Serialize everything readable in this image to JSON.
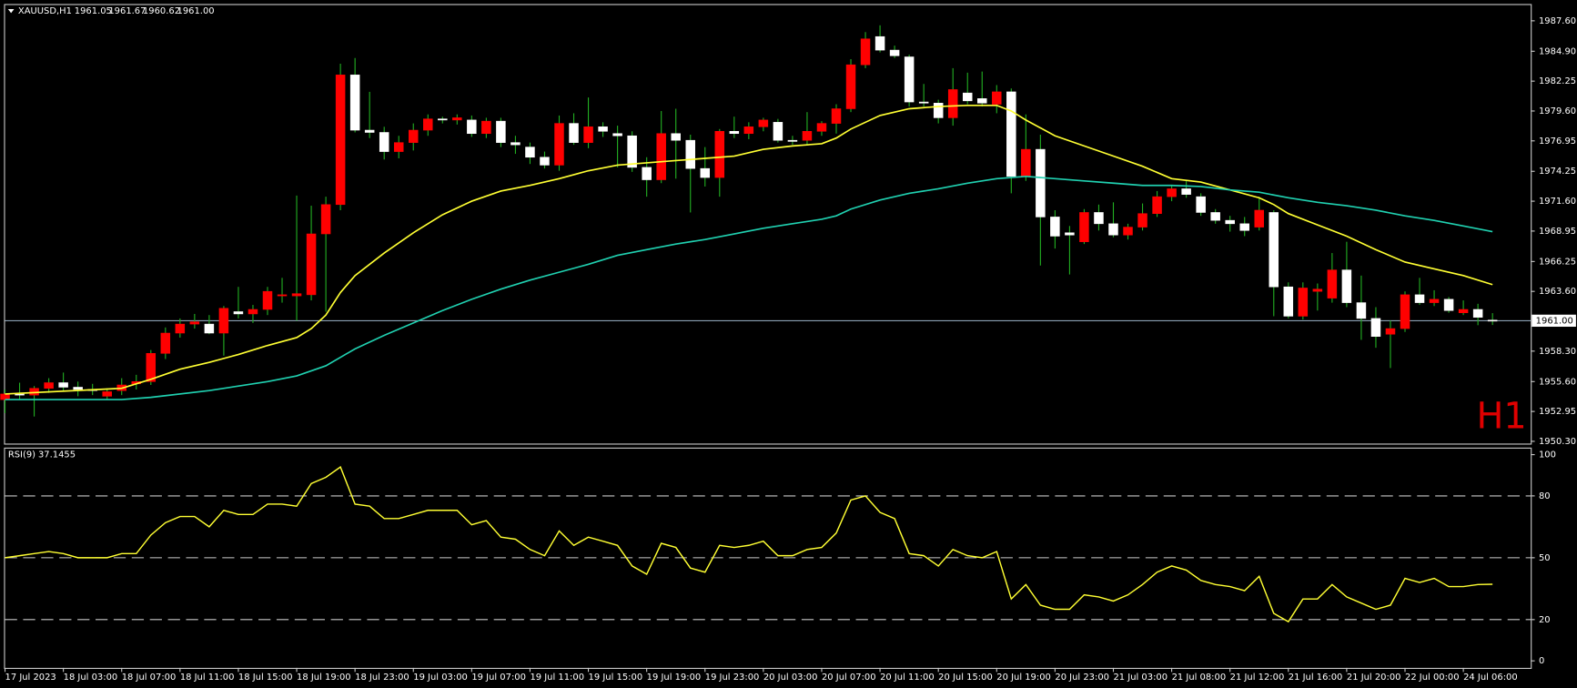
{
  "chart_data": {
    "type": "candlestick",
    "symbol": "XAUUSD,H1",
    "last_labels": [
      "1961.05",
      "1961.67",
      "1960.62",
      "1961.00"
    ],
    "timeframe_label": "H1",
    "up_color": "#ff0000",
    "down_color": "#ffffff",
    "wick_color": "#22b022",
    "price_line_color": "#8aa0b4",
    "ylim": [
      1950.1,
      1989.0
    ],
    "yticks": [
      {
        "value": 1987.6,
        "label": "1987.60"
      },
      {
        "value": 1984.9,
        "label": "1984.90"
      },
      1982.25,
      {
        "value": 1979.6,
        "label": "1979.60"
      },
      1976.95,
      1974.25,
      {
        "value": 1971.6,
        "label": "1971.60"
      },
      1968.95,
      1966.25,
      {
        "value": 1963.6,
        "label": "1963.60"
      },
      {
        "value": 1958.3,
        "label": "1958.30"
      },
      {
        "value": 1955.6,
        "label": "1955.60"
      },
      1952.95,
      {
        "value": 1950.3,
        "label": "1950.30"
      }
    ],
    "xticks": [
      {
        "value": 0,
        "label": "17 Jul 2023"
      },
      {
        "value": 4,
        "label": "18 Jul 03:00"
      },
      {
        "value": 8,
        "label": "18 Jul 07:00"
      },
      {
        "value": 12,
        "label": "18 Jul 11:00"
      },
      {
        "value": 16,
        "label": "18 Jul 15:00"
      },
      {
        "value": 20,
        "label": "18 Jul 19:00"
      },
      {
        "value": 24,
        "label": "18 Jul 23:00"
      },
      {
        "value": 28,
        "label": "19 Jul 03:00"
      },
      {
        "value": 32,
        "label": "19 Jul 07:00"
      },
      {
        "value": 36,
        "label": "19 Jul 11:00"
      },
      {
        "value": 40,
        "label": "19 Jul 15:00"
      },
      {
        "value": 44,
        "label": "19 Jul 19:00"
      },
      {
        "value": 48,
        "label": "19 Jul 23:00"
      },
      {
        "value": 52,
        "label": "20 Jul 03:00"
      },
      {
        "value": 56,
        "label": "20 Jul 07:00"
      },
      {
        "value": 60,
        "label": "20 Jul 11:00"
      },
      {
        "value": 64,
        "label": "20 Jul 15:00"
      },
      {
        "value": 68,
        "label": "20 Jul 19:00"
      },
      {
        "value": 72,
        "label": "20 Jul 23:00"
      },
      {
        "value": 76,
        "label": "21 Jul 03:00"
      },
      {
        "value": 80,
        "label": "21 Jul 08:00"
      },
      {
        "value": 84,
        "label": "21 Jul 12:00"
      },
      {
        "value": 88,
        "label": "21 Jul 16:00"
      },
      {
        "value": 92,
        "label": "21 Jul 20:00"
      },
      {
        "value": 96,
        "label": "22 Jul 00:00"
      },
      {
        "value": 100,
        "label": "24 Jul 06:00"
      }
    ],
    "candles": [
      [
        1954.0,
        1954.9,
        1952.8,
        1954.5
      ],
      [
        1954.5,
        1955.5,
        1954.0,
        1954.4
      ],
      [
        1954.4,
        1955.2,
        1952.5,
        1955.0
      ],
      [
        1955.0,
        1955.9,
        1954.6,
        1955.5
      ],
      [
        1955.5,
        1956.4,
        1954.8,
        1955.1
      ],
      [
        1955.1,
        1955.6,
        1954.3,
        1954.9
      ],
      [
        1954.9,
        1955.4,
        1954.4,
        1954.8
      ],
      [
        1954.3,
        1955.0,
        1954.0,
        1954.7
      ],
      [
        1954.8,
        1955.9,
        1954.4,
        1955.3
      ],
      [
        1955.4,
        1956.2,
        1954.9,
        1955.6
      ],
      [
        1955.6,
        1958.4,
        1955.3,
        1958.1
      ],
      [
        1958.1,
        1960.4,
        1957.6,
        1959.9
      ],
      [
        1959.9,
        1961.2,
        1959.5,
        1960.7
      ],
      [
        1960.7,
        1961.6,
        1960.3,
        1960.9
      ],
      [
        1960.7,
        1961.5,
        1959.8,
        1959.9
      ],
      [
        1959.9,
        1962.3,
        1957.9,
        1962.1
      ],
      [
        1961.8,
        1964.0,
        1961.2,
        1961.6
      ],
      [
        1961.6,
        1962.4,
        1960.8,
        1962.0
      ],
      [
        1962.0,
        1964.0,
        1961.5,
        1963.6
      ],
      [
        1963.2,
        1964.8,
        1962.6,
        1963.3
      ],
      [
        1963.2,
        1972.1,
        1961.0,
        1963.4
      ],
      [
        1963.3,
        1971.2,
        1962.8,
        1968.7
      ],
      [
        1968.7,
        1972.0,
        1961.8,
        1971.3
      ],
      [
        1971.3,
        1983.8,
        1970.8,
        1982.8
      ],
      [
        1982.8,
        1984.3,
        1977.7,
        1977.9
      ],
      [
        1977.9,
        1981.3,
        1977.2,
        1977.7
      ],
      [
        1977.7,
        1978.2,
        1975.3,
        1976.0
      ],
      [
        1976.0,
        1977.4,
        1975.4,
        1976.8
      ],
      [
        1976.8,
        1978.5,
        1976.1,
        1977.9
      ],
      [
        1977.9,
        1979.3,
        1977.4,
        1978.9
      ],
      [
        1978.9,
        1979.1,
        1978.5,
        1978.8
      ],
      [
        1978.8,
        1979.3,
        1978.4,
        1979.0
      ],
      [
        1978.8,
        1979.2,
        1977.3,
        1977.6
      ],
      [
        1977.6,
        1979.0,
        1977.2,
        1978.7
      ],
      [
        1978.7,
        1979.0,
        1976.4,
        1976.8
      ],
      [
        1976.8,
        1977.4,
        1975.8,
        1976.6
      ],
      [
        1976.4,
        1976.8,
        1974.9,
        1975.5
      ],
      [
        1975.5,
        1976.0,
        1974.5,
        1974.8
      ],
      [
        1974.8,
        1979.2,
        1974.3,
        1978.5
      ],
      [
        1978.5,
        1979.4,
        1976.6,
        1976.8
      ],
      [
        1976.8,
        1980.8,
        1976.3,
        1978.2
      ],
      [
        1978.2,
        1978.6,
        1977.3,
        1977.8
      ],
      [
        1977.6,
        1978.3,
        1974.6,
        1977.4
      ],
      [
        1977.4,
        1977.8,
        1974.2,
        1974.6
      ],
      [
        1974.6,
        1975.5,
        1972.0,
        1973.5
      ],
      [
        1973.5,
        1979.6,
        1973.2,
        1977.6
      ],
      [
        1977.6,
        1979.8,
        1973.6,
        1977.0
      ],
      [
        1977.0,
        1977.5,
        1970.6,
        1974.5
      ],
      [
        1974.5,
        1976.4,
        1972.9,
        1973.7
      ],
      [
        1973.7,
        1978.0,
        1972.0,
        1977.8
      ],
      [
        1977.8,
        1979.1,
        1977.2,
        1977.6
      ],
      [
        1977.6,
        1978.6,
        1977.1,
        1978.2
      ],
      [
        1978.2,
        1979.0,
        1977.8,
        1978.8
      ],
      [
        1978.6,
        1978.9,
        1976.8,
        1977.0
      ],
      [
        1977.0,
        1977.4,
        1976.6,
        1976.9
      ],
      [
        1977.0,
        1979.5,
        1976.6,
        1977.8
      ],
      [
        1977.8,
        1978.7,
        1977.4,
        1978.5
      ],
      [
        1978.5,
        1980.2,
        1977.6,
        1979.8
      ],
      [
        1979.8,
        1984.2,
        1979.5,
        1983.7
      ],
      [
        1983.7,
        1986.6,
        1983.4,
        1986.0
      ],
      [
        1986.2,
        1987.2,
        1984.8,
        1985.0
      ],
      [
        1985.0,
        1985.4,
        1984.3,
        1984.5
      ],
      [
        1984.4,
        1984.6,
        1980.0,
        1980.4
      ],
      [
        1980.4,
        1982.0,
        1980.0,
        1980.3
      ],
      [
        1980.3,
        1980.6,
        1978.5,
        1979.0
      ],
      [
        1979.0,
        1983.4,
        1978.3,
        1981.5
      ],
      [
        1981.2,
        1983.0,
        1980.2,
        1980.5
      ],
      [
        1980.7,
        1983.1,
        1980.0,
        1980.3
      ],
      [
        1980.2,
        1981.9,
        1979.4,
        1981.3
      ],
      [
        1981.3,
        1981.6,
        1972.3,
        1973.8
      ],
      [
        1973.8,
        1979.3,
        1973.4,
        1976.2
      ],
      [
        1976.2,
        1977.5,
        1965.9,
        1970.2
      ],
      [
        1970.2,
        1970.8,
        1967.4,
        1968.5
      ],
      [
        1968.8,
        1969.4,
        1965.1,
        1968.6
      ],
      [
        1968.0,
        1970.9,
        1967.8,
        1970.6
      ],
      [
        1970.6,
        1971.3,
        1969.0,
        1969.6
      ],
      [
        1969.6,
        1971.5,
        1968.4,
        1968.6
      ],
      [
        1968.6,
        1969.6,
        1968.2,
        1969.3
      ],
      [
        1969.3,
        1971.4,
        1969.0,
        1970.5
      ],
      [
        1970.5,
        1972.5,
        1970.2,
        1972.0
      ],
      [
        1972.0,
        1973.0,
        1971.6,
        1972.7
      ],
      [
        1972.7,
        1973.4,
        1971.9,
        1972.2
      ],
      [
        1972.0,
        1972.3,
        1970.3,
        1970.6
      ],
      [
        1970.6,
        1970.9,
        1969.6,
        1969.9
      ],
      [
        1969.9,
        1970.3,
        1968.9,
        1969.6
      ],
      [
        1969.6,
        1970.2,
        1968.5,
        1969.0
      ],
      [
        1969.3,
        1972.0,
        1969.0,
        1970.8
      ],
      [
        1970.6,
        1970.8,
        1961.4,
        1964.0
      ],
      [
        1964.0,
        1964.4,
        1961.2,
        1961.4
      ],
      [
        1961.4,
        1964.4,
        1961.1,
        1963.9
      ],
      [
        1963.6,
        1964.3,
        1961.9,
        1963.8
      ],
      [
        1963.0,
        1967.0,
        1962.6,
        1965.5
      ],
      [
        1965.5,
        1968.0,
        1962.2,
        1962.6
      ],
      [
        1962.6,
        1965.0,
        1959.3,
        1961.2
      ],
      [
        1961.2,
        1962.2,
        1958.6,
        1959.6
      ],
      [
        1959.8,
        1961.0,
        1956.8,
        1960.3
      ],
      [
        1960.3,
        1963.6,
        1960.0,
        1963.3
      ],
      [
        1963.3,
        1964.8,
        1962.4,
        1962.6
      ],
      [
        1962.6,
        1963.7,
        1962.3,
        1962.9
      ],
      [
        1962.9,
        1963.1,
        1961.7,
        1961.9
      ],
      [
        1961.7,
        1962.8,
        1961.5,
        1962.0
      ],
      [
        1962.0,
        1962.5,
        1960.6,
        1961.3
      ],
      [
        1961.05,
        1961.67,
        1960.62,
        1961.0
      ]
    ],
    "ma_lines": [
      {
        "color": "#ffff33",
        "x": [
          0,
          8,
          10,
          12,
          14,
          16,
          18,
          20,
          21,
          22,
          23,
          24,
          26,
          28,
          30,
          32,
          34,
          36,
          38,
          40,
          42,
          44,
          46,
          48,
          50,
          52,
          54,
          56,
          57,
          58,
          60,
          62,
          64,
          66,
          68,
          69,
          70,
          72,
          74,
          76,
          78,
          80,
          82,
          84,
          86,
          87,
          88,
          90,
          92,
          94,
          96,
          98,
          100,
          102
        ],
        "values": [
          1954.5,
          1955.0,
          1955.8,
          1956.7,
          1957.3,
          1958.0,
          1958.8,
          1959.5,
          1960.3,
          1961.5,
          1963.5,
          1965.0,
          1967.0,
          1968.8,
          1970.4,
          1971.6,
          1972.5,
          1973.0,
          1973.6,
          1974.3,
          1974.8,
          1975.0,
          1975.2,
          1975.4,
          1975.6,
          1976.2,
          1976.5,
          1976.7,
          1977.2,
          1978.0,
          1979.2,
          1979.8,
          1980.0,
          1980.1,
          1980.1,
          1979.6,
          1978.8,
          1977.4,
          1976.5,
          1975.6,
          1974.7,
          1973.6,
          1973.3,
          1972.6,
          1971.9,
          1971.3,
          1970.5,
          1969.5,
          1968.5,
          1967.3,
          1966.2,
          1965.6,
          1965.0,
          1964.2
        ]
      },
      {
        "color": "#20d0b0",
        "x": [
          0,
          8,
          10,
          14,
          18,
          20,
          22,
          24,
          26,
          28,
          30,
          32,
          34,
          36,
          38,
          40,
          42,
          44,
          46,
          48,
          50,
          52,
          54,
          56,
          57,
          58,
          60,
          62,
          64,
          66,
          68,
          70,
          72,
          74,
          76,
          78,
          80,
          82,
          84,
          86,
          88,
          90,
          92,
          94,
          96,
          98,
          100,
          102
        ],
        "values": [
          1954.0,
          1954.0,
          1954.2,
          1954.8,
          1955.6,
          1956.1,
          1957.0,
          1958.5,
          1959.7,
          1960.8,
          1961.9,
          1962.9,
          1963.8,
          1964.6,
          1965.3,
          1966.0,
          1966.8,
          1967.3,
          1967.8,
          1968.2,
          1968.7,
          1969.2,
          1969.6,
          1970.0,
          1970.3,
          1970.9,
          1971.7,
          1972.3,
          1972.7,
          1973.2,
          1973.6,
          1973.8,
          1973.6,
          1973.4,
          1973.2,
          1973.0,
          1973.0,
          1972.9,
          1972.6,
          1972.4,
          1971.9,
          1971.5,
          1971.2,
          1970.8,
          1970.3,
          1969.9,
          1969.4,
          1968.9
        ]
      }
    ],
    "rsi": {
      "name": "RSI(9)",
      "color": "#ffff33",
      "ylim": [
        0,
        100
      ],
      "yticks": [
        0,
        20,
        50,
        80,
        100
      ],
      "levels": [
        20,
        50,
        80
      ],
      "values": [
        50,
        51,
        52,
        53,
        52,
        50,
        50,
        50,
        52,
        52,
        61,
        67,
        70,
        70,
        65,
        73,
        71,
        71,
        76,
        76,
        75,
        86,
        89,
        94,
        76,
        75,
        69,
        69,
        71,
        73,
        73,
        73,
        66,
        68,
        60,
        59,
        54,
        51,
        63,
        56,
        60,
        58,
        56,
        46,
        42,
        57,
        55,
        45,
        43,
        56,
        55,
        56,
        58,
        51,
        51,
        54,
        55,
        62,
        78,
        80,
        72,
        69,
        52,
        51,
        46,
        54,
        51,
        50,
        53,
        30,
        37,
        27,
        25,
        25,
        32,
        31,
        29,
        32,
        37,
        43,
        46,
        44,
        39,
        37,
        36,
        34,
        41,
        23,
        19,
        30,
        30,
        37,
        31,
        28,
        25,
        27,
        40,
        38,
        40,
        36,
        36,
        37,
        37.1455
      ]
    }
  }
}
